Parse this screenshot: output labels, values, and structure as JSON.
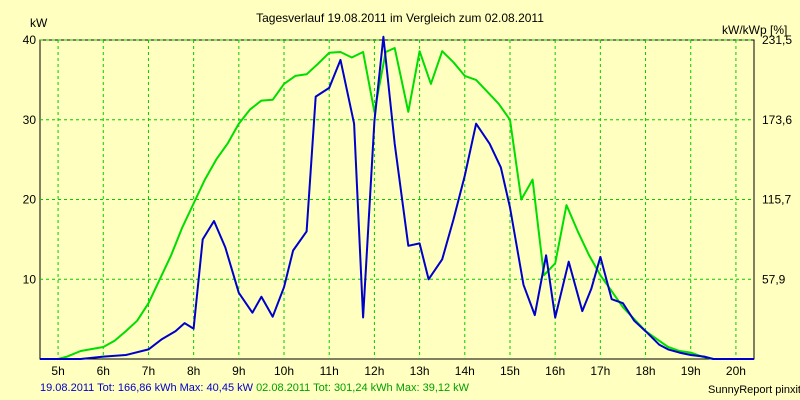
{
  "chart_data": {
    "type": "line",
    "title": "Tagesverlauf 19.08.2011 im Vergleich zum 02.08.2011",
    "ylabel_left": "kW",
    "ylabel_right": "kW/kWp [%]",
    "ylim": [
      0,
      40
    ],
    "xlim": [
      4.6,
      20.4
    ],
    "y_ticks": [
      10,
      20,
      30,
      40
    ],
    "y_ticks_right": [
      "57,9",
      "115,7",
      "173,6",
      "231,5"
    ],
    "x_ticks": [
      "5h",
      "6h",
      "7h",
      "8h",
      "9h",
      "10h",
      "11h",
      "12h",
      "13h",
      "14h",
      "15h",
      "16h",
      "17h",
      "18h",
      "19h",
      "20h"
    ],
    "grid": true,
    "series": [
      {
        "name": "19.08.2011",
        "color": "#0000cc",
        "x": [
          4.6,
          5.0,
          5.5,
          6.0,
          6.5,
          7.0,
          7.3,
          7.6,
          7.8,
          8.0,
          8.2,
          8.45,
          8.7,
          9.0,
          9.3,
          9.5,
          9.75,
          10.0,
          10.2,
          10.5,
          10.7,
          11.0,
          11.25,
          11.55,
          11.75,
          12.0,
          12.2,
          12.45,
          12.75,
          13.0,
          13.2,
          13.5,
          13.75,
          14.0,
          14.25,
          14.55,
          14.8,
          15.0,
          15.3,
          15.55,
          15.8,
          16.0,
          16.3,
          16.6,
          16.8,
          17.0,
          17.25,
          17.5,
          17.75,
          18.0,
          18.3,
          18.5,
          18.75,
          19.0,
          19.3,
          19.5,
          19.75,
          20.0,
          20.4
        ],
        "y": [
          0,
          0,
          0,
          0.3,
          0.5,
          1.2,
          2.5,
          3.5,
          4.5,
          3.8,
          15,
          17.3,
          14,
          8.3,
          5.8,
          7.8,
          5.3,
          9,
          13.6,
          16,
          32.9,
          34,
          37.5,
          29.5,
          5.2,
          29.8,
          40.4,
          27,
          14.2,
          14.5,
          10,
          12.5,
          17.5,
          23,
          29.5,
          27,
          24,
          19,
          9.3,
          5.5,
          13,
          5.2,
          12.2,
          6,
          8.8,
          12.8,
          7.5,
          7,
          4.8,
          3.5,
          1.8,
          1.2,
          0.8,
          0.5,
          0.3,
          0,
          0,
          0,
          0
        ]
      },
      {
        "name": "02.08.2011",
        "color": "#00dd00",
        "x": [
          4.6,
          5.0,
          5.2,
          5.5,
          6.0,
          6.25,
          6.5,
          6.75,
          7.0,
          7.25,
          7.5,
          7.75,
          8.0,
          8.25,
          8.5,
          8.75,
          9.0,
          9.25,
          9.5,
          9.75,
          10.0,
          10.25,
          10.5,
          10.75,
          11.0,
          11.25,
          11.5,
          11.75,
          12.0,
          12.25,
          12.45,
          12.75,
          13.0,
          13.25,
          13.5,
          13.75,
          14.0,
          14.25,
          14.5,
          14.75,
          15.0,
          15.25,
          15.5,
          15.75,
          16.0,
          16.25,
          16.5,
          16.75,
          17.0,
          17.25,
          17.5,
          17.75,
          18.0,
          18.25,
          18.5,
          18.75,
          19.0,
          19.25,
          19.5,
          19.75,
          20.0,
          20.4
        ],
        "y": [
          0,
          0,
          0.3,
          1,
          1.5,
          2.3,
          3.5,
          4.8,
          7,
          10,
          13,
          16.5,
          19.5,
          22.5,
          25,
          27,
          29.5,
          31.3,
          32.4,
          32.5,
          34.5,
          35.5,
          35.7,
          37,
          38.4,
          38.5,
          37.8,
          38.5,
          31,
          38.5,
          39,
          31,
          38.6,
          34.5,
          38.6,
          37.2,
          35.5,
          35,
          33.5,
          32,
          30,
          20,
          22.5,
          10.5,
          12,
          19.3,
          16,
          13,
          10.5,
          8.5,
          6.5,
          5,
          3.5,
          2.5,
          1.5,
          1,
          0.8,
          0.3,
          0,
          0,
          0,
          0
        ]
      }
    ],
    "footer": {
      "series1_text": "19.08.2011 Tot: 166,86 kWh Max: 40,45 kW",
      "series2_text": "02.08.2011 Tot: 301,24 kWh Max: 39,12 kW"
    },
    "credit": "SunnyReport pinxit"
  }
}
